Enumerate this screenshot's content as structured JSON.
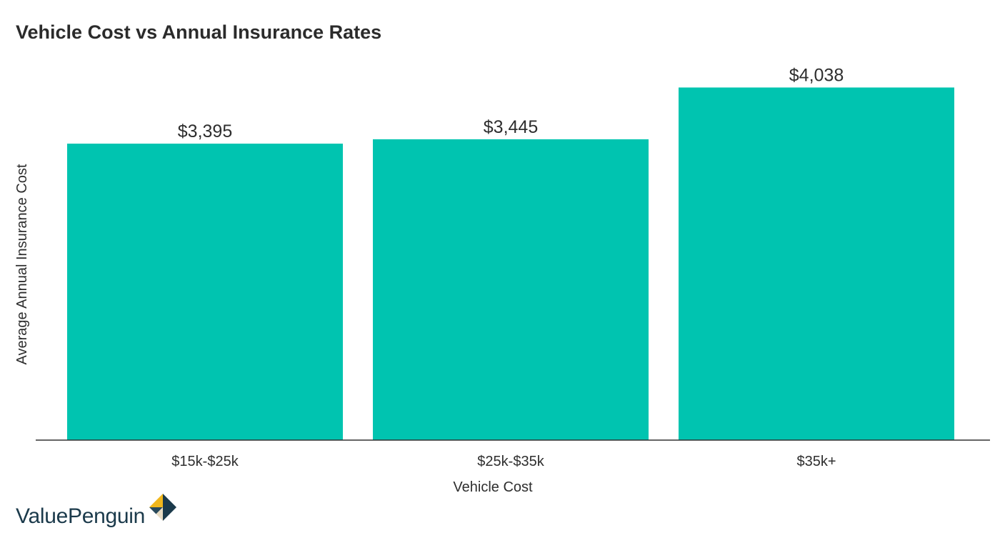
{
  "title": "Vehicle Cost vs Annual Insurance Rates",
  "brand": {
    "name": "ValuePenguin",
    "logo": "valuepenguin-diamond-logo"
  },
  "colors": {
    "bar": "#00c4b0",
    "axis": "#333333",
    "text": "#2e2e2e",
    "brand_text": "#1b3a4b",
    "logo_dark": "#1b3a4b",
    "logo_gold": "#f1b71c",
    "logo_beige": "#e8dcc4"
  },
  "chart_data": {
    "type": "bar",
    "title": "Vehicle Cost vs Annual Insurance Rates",
    "xlabel": "Vehicle Cost",
    "ylabel": "Average Annual Insurance Cost",
    "categories": [
      "$15k-$25k",
      "$25k-$35k",
      "$35k+"
    ],
    "values": [
      3395,
      3445,
      4038
    ],
    "value_labels": [
      "$3,395",
      "$3,445",
      "$4,038"
    ],
    "ylim": [
      0,
      4500
    ],
    "grid": false,
    "legend": "none"
  }
}
